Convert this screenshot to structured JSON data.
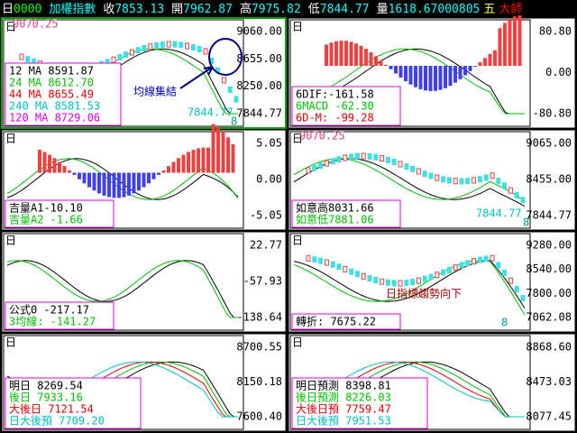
{
  "header": [
    {
      "text": "日",
      "color": "#ffffff"
    },
    {
      "text": "0000",
      "color": "#00ff00"
    },
    {
      "text": "加權指數",
      "color": "#00ffff"
    },
    {
      "text": "收",
      "color": "#ffffff"
    },
    {
      "text": "7853.13",
      "color": "#00ffff"
    },
    {
      "text": "開",
      "color": "#ffffff"
    },
    {
      "text": "7962.87",
      "color": "#00ffff"
    },
    {
      "text": "高",
      "color": "#ffffff"
    },
    {
      "text": "7975.82",
      "color": "#00ffff"
    },
    {
      "text": "低",
      "color": "#ffffff"
    },
    {
      "text": "7844.77",
      "color": "#00ffff"
    },
    {
      "text": "量",
      "color": "#ffffff"
    },
    {
      "text": "1618.67000805",
      "color": "#00ffff"
    },
    {
      "text": "五",
      "color": "#ffff00"
    },
    {
      "text": "大師",
      "color": "#ff0000"
    }
  ],
  "panels": [
    {
      "label": "日",
      "high": "9070.25",
      "ticks": [
        "9060.00",
        "8655.00",
        "8250.00",
        "7844.77"
      ],
      "legend": [
        {
          "text": "12 MA 8591.87",
          "color": "#000000"
        },
        {
          "text": "24 MA 8612.70",
          "color": "#00c000"
        },
        {
          "text": "44 MA 8655.49",
          "color": "#e00000"
        },
        {
          "text": "240 MA 8581.53",
          "color": "#00c0c0"
        },
        {
          "text": "120 MA 8729.06",
          "color": "#e000e0"
        }
      ],
      "notes": [
        {
          "text": "均線集結",
          "color": "#0000c0"
        },
        {
          "text": "7844.77",
          "color": "#00c0c0"
        },
        {
          "text": "8",
          "color": "#00a0a0"
        }
      ]
    },
    {
      "label": "日",
      "ticks": [
        "80.80",
        "0.00",
        "-80.80"
      ],
      "legend": [
        {
          "text": "6DIF:-161.58",
          "color": "#000000"
        },
        {
          "text": "6MACD -62.30",
          "color": "#00c000"
        },
        {
          "text": "6D-M: -99.28",
          "color": "#e00000"
        }
      ],
      "notes": []
    },
    {
      "label": "日",
      "ticks": [
        "5.05",
        "0.00",
        "-5.05"
      ],
      "legend": [
        {
          "text": "吉量A1-10.10",
          "color": "#000000"
        },
        {
          "text": "吉量A2 -1.66",
          "color": "#00c000"
        }
      ],
      "notes": []
    },
    {
      "label": "日",
      "high": "9070.25",
      "ticks": [
        "9065.00",
        "8455.00",
        "7844.77"
      ],
      "legend": [
        {
          "text": "如意高8031.66",
          "color": "#000000"
        },
        {
          "text": "如意低7881.06",
          "color": "#00c000"
        }
      ],
      "notes": [
        {
          "text": "7844.77",
          "color": "#00c0c0"
        },
        {
          "text": "8",
          "color": "#00a0a0"
        }
      ]
    },
    {
      "label": "日",
      "ticks": [
        "22.77",
        "-57.93",
        "-138.64"
      ],
      "legend": [
        {
          "text": "公式0 -217.17",
          "color": "#000000"
        },
        {
          "text": "3均線: -141.27",
          "color": "#00c000"
        }
      ],
      "notes": []
    },
    {
      "label": "日",
      "ticks": [
        "9280.00",
        "8540.00",
        "7800.00",
        "7062.08"
      ],
      "legend": [
        {
          "text": "轉折: 7675.22",
          "color": "#000000"
        }
      ],
      "notes": [
        {
          "text": "日指標趨勢向下",
          "color": "#a00000"
        },
        {
          "text": "8",
          "color": "#00a0a0"
        }
      ]
    },
    {
      "label": "日",
      "ticks": [
        "8700.55",
        "8150.18",
        "7600.40"
      ],
      "legend": [
        {
          "text": "明日 8269.54",
          "color": "#000000"
        },
        {
          "text": "後日 7933.16",
          "color": "#00c000"
        },
        {
          "text": "大後日 7121.54",
          "color": "#e00000"
        },
        {
          "text": "日大後預 7709.20",
          "color": "#00c0c0"
        }
      ],
      "notes": []
    },
    {
      "label": "日",
      "ticks": [
        "8868.60",
        "8473.03",
        "8077.45"
      ],
      "legend": [
        {
          "text": "明日預測 8398.81",
          "color": "#000000"
        },
        {
          "text": "後日預測 8226.03",
          "color": "#00c000"
        },
        {
          "text": "大後日預 7759.47",
          "color": "#e00000"
        },
        {
          "text": "日大後預 7951.53",
          "color": "#00c0c0"
        }
      ],
      "notes": []
    }
  ]
}
